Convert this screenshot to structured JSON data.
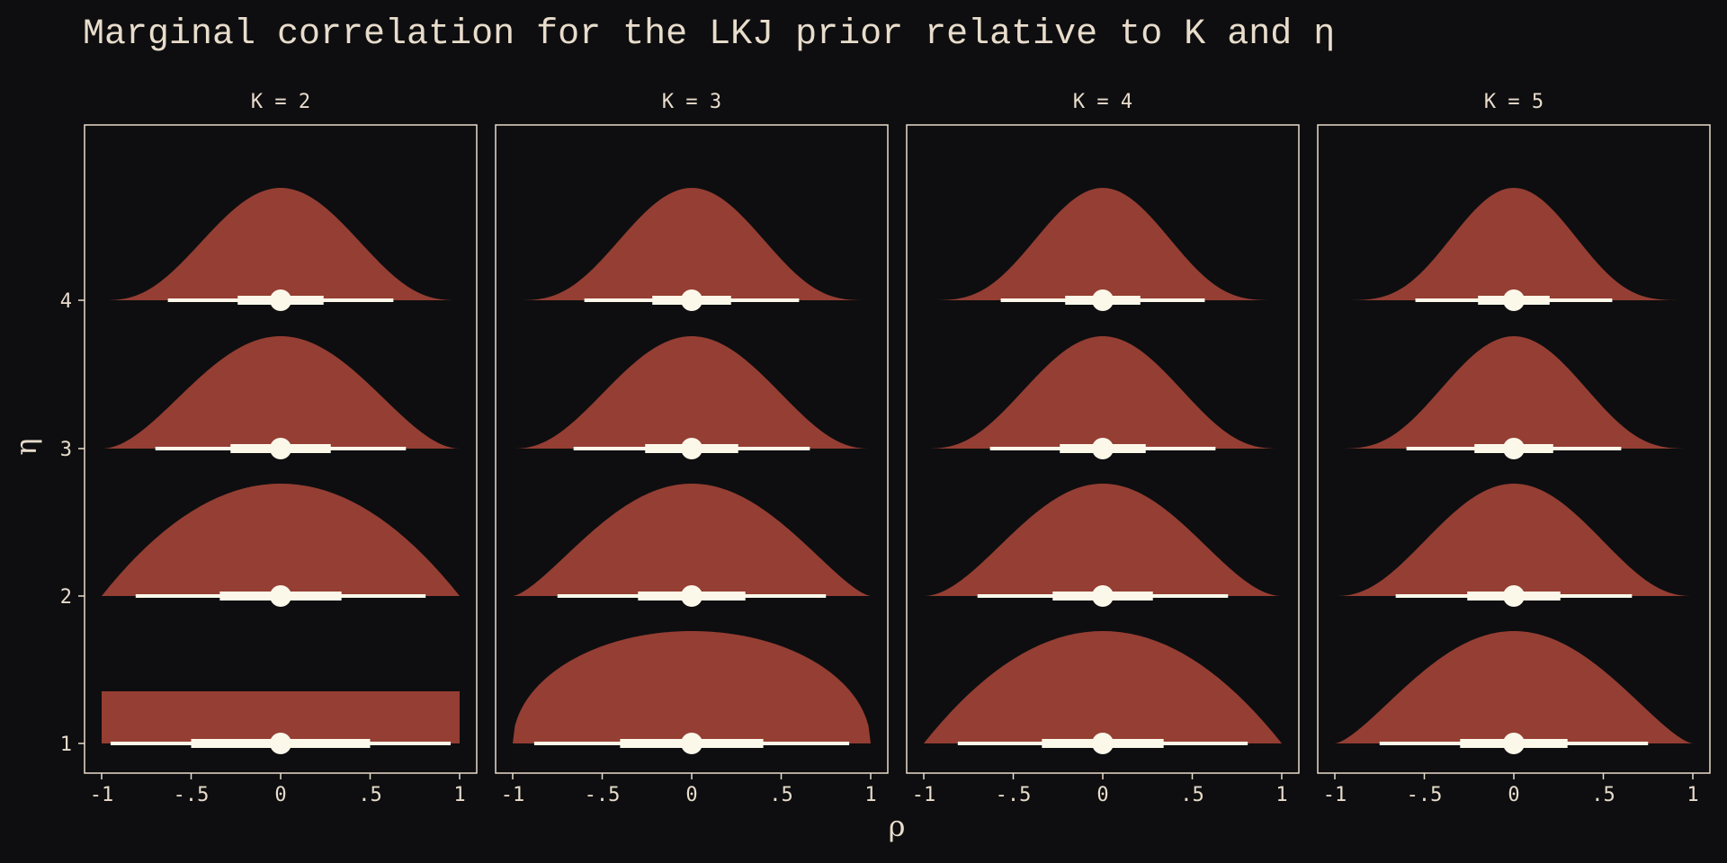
{
  "colors": {
    "background": "#0e0e10",
    "text": "#e8dccb",
    "density_fill": "#953e33",
    "interval": "#fbf8ea"
  },
  "chart_data": {
    "type": "area",
    "title": "Marginal correlation for the LKJ prior relative to K and η",
    "xlabel": "ρ",
    "ylabel": "η",
    "xlim": [
      -1,
      1
    ],
    "x_ticks": [
      -1,
      -0.5,
      0,
      0.5,
      1
    ],
    "x_tick_labels": [
      "-1",
      "-.5",
      "0",
      ".5",
      "1"
    ],
    "eta_levels": [
      1,
      2,
      3,
      4
    ],
    "eta_tick_labels": [
      "1",
      "2",
      "3",
      "4"
    ],
    "grid": false,
    "legend": "none",
    "panels": [
      {
        "label": "K = 2",
        "K": 2,
        "rows": [
          {
            "eta": 1,
            "median": 0,
            "inner": [
              -0.5,
              0.5
            ],
            "outer": [
              -0.95,
              0.95
            ]
          },
          {
            "eta": 2,
            "median": 0,
            "inner": [
              -0.34,
              0.34
            ],
            "outer": [
              -0.81,
              0.81
            ]
          },
          {
            "eta": 3,
            "median": 0,
            "inner": [
              -0.28,
              0.28
            ],
            "outer": [
              -0.7,
              0.7
            ]
          },
          {
            "eta": 4,
            "median": 0,
            "inner": [
              -0.24,
              0.24
            ],
            "outer": [
              -0.63,
              0.63
            ]
          }
        ]
      },
      {
        "label": "K = 3",
        "K": 3,
        "rows": [
          {
            "eta": 1,
            "median": 0,
            "inner": [
              -0.4,
              0.4
            ],
            "outer": [
              -0.88,
              0.88
            ]
          },
          {
            "eta": 2,
            "median": 0,
            "inner": [
              -0.3,
              0.3
            ],
            "outer": [
              -0.75,
              0.75
            ]
          },
          {
            "eta": 3,
            "median": 0,
            "inner": [
              -0.26,
              0.26
            ],
            "outer": [
              -0.66,
              0.66
            ]
          },
          {
            "eta": 4,
            "median": 0,
            "inner": [
              -0.22,
              0.22
            ],
            "outer": [
              -0.6,
              0.6
            ]
          }
        ]
      },
      {
        "label": "K = 4",
        "K": 4,
        "rows": [
          {
            "eta": 1,
            "median": 0,
            "inner": [
              -0.34,
              0.34
            ],
            "outer": [
              -0.81,
              0.81
            ]
          },
          {
            "eta": 2,
            "median": 0,
            "inner": [
              -0.28,
              0.28
            ],
            "outer": [
              -0.7,
              0.7
            ]
          },
          {
            "eta": 3,
            "median": 0,
            "inner": [
              -0.24,
              0.24
            ],
            "outer": [
              -0.63,
              0.63
            ]
          },
          {
            "eta": 4,
            "median": 0,
            "inner": [
              -0.21,
              0.21
            ],
            "outer": [
              -0.57,
              0.57
            ]
          }
        ]
      },
      {
        "label": "K = 5",
        "K": 5,
        "rows": [
          {
            "eta": 1,
            "median": 0,
            "inner": [
              -0.3,
              0.3
            ],
            "outer": [
              -0.75,
              0.75
            ]
          },
          {
            "eta": 2,
            "median": 0,
            "inner": [
              -0.26,
              0.26
            ],
            "outer": [
              -0.66,
              0.66
            ]
          },
          {
            "eta": 3,
            "median": 0,
            "inner": [
              -0.22,
              0.22
            ],
            "outer": [
              -0.6,
              0.6
            ]
          },
          {
            "eta": 4,
            "median": 0,
            "inner": [
              -0.2,
              0.2
            ],
            "outer": [
              -0.55,
              0.55
            ]
          }
        ]
      }
    ]
  }
}
